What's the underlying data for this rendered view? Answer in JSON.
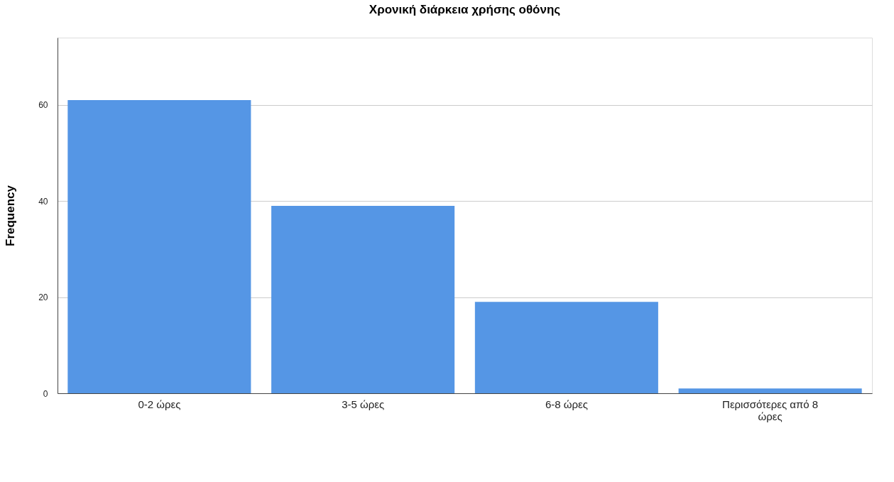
{
  "chart_data": {
    "type": "bar",
    "title": "Χρονική διάρκεια χρήσης οθόνης",
    "ylabel": "Frequency",
    "categories": [
      "0-2  ώρες",
      "3-5 ώρες",
      "6-8 ώρες",
      "Περισσότερες από 8 ώρες"
    ],
    "values": [
      61,
      39,
      19,
      1
    ],
    "color": "#5596e5",
    "ylim": [
      0,
      74
    ],
    "yticks": [
      0,
      20,
      40,
      60
    ],
    "grid": "y"
  }
}
